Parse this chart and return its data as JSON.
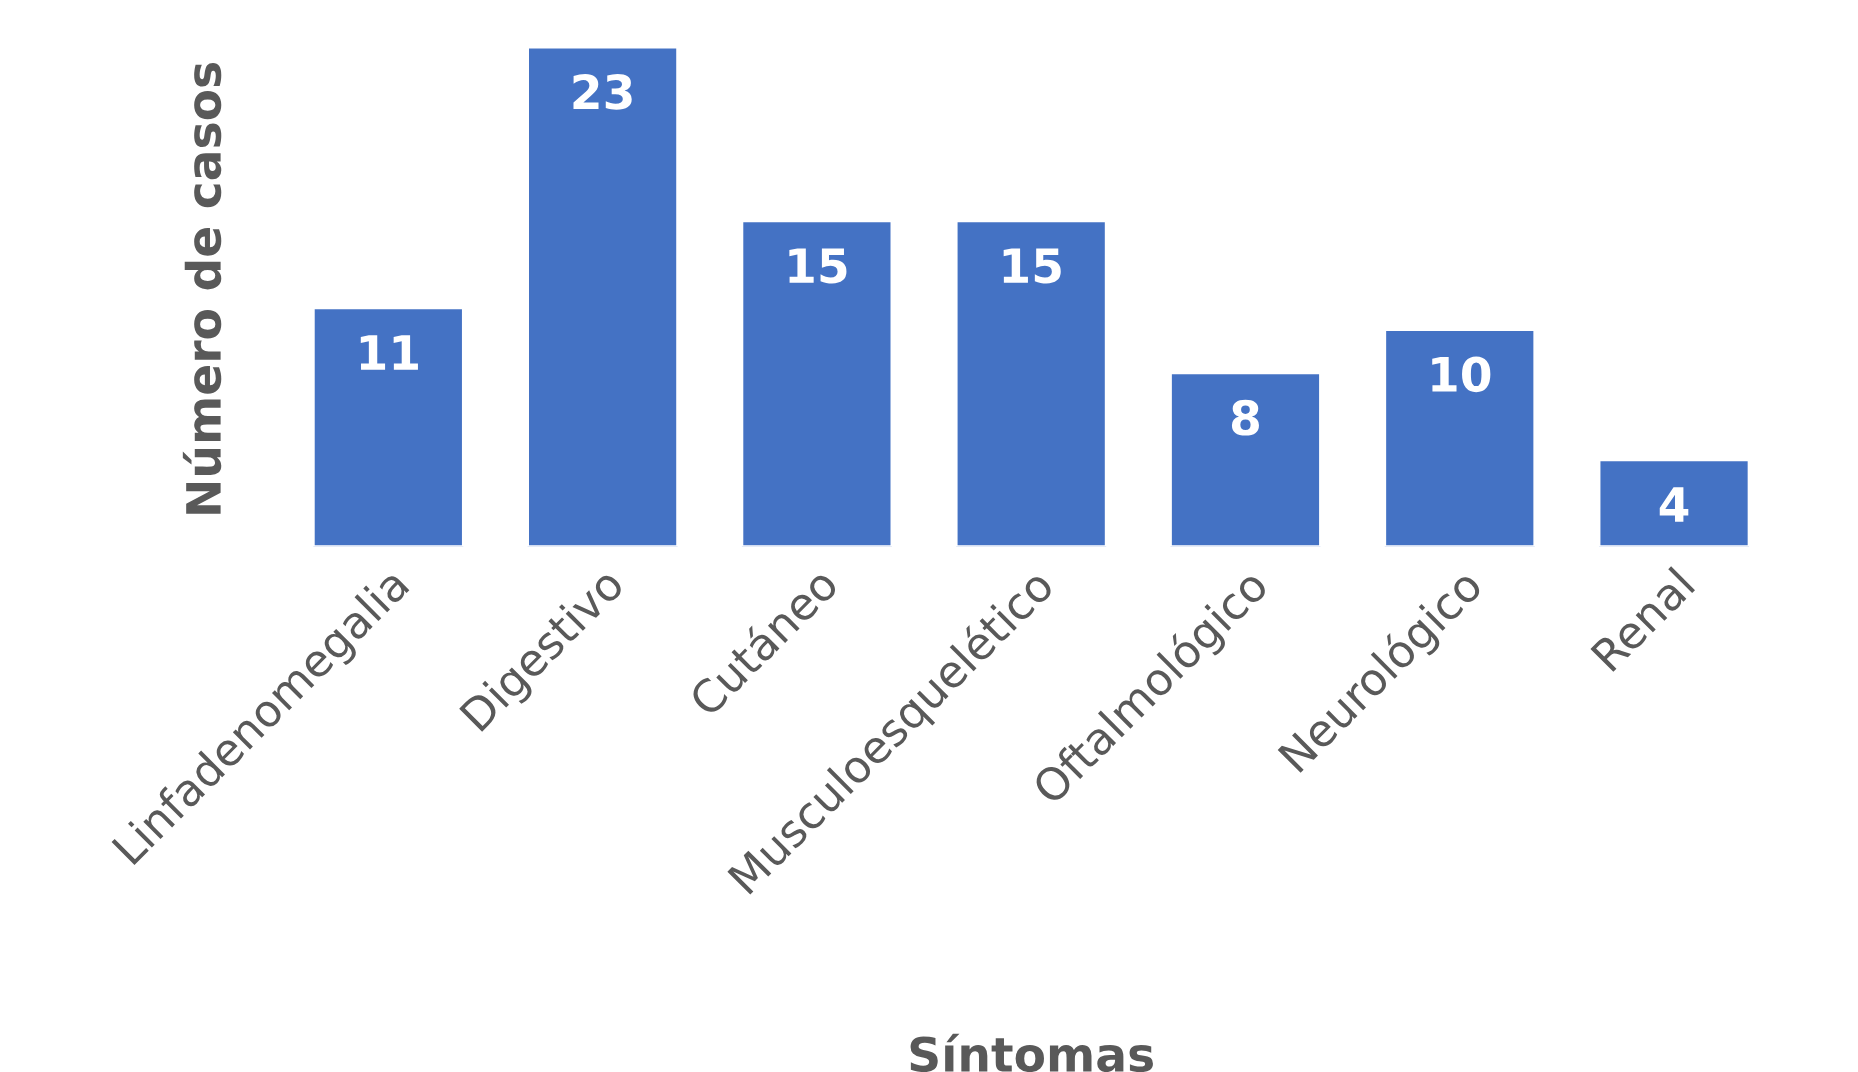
{
  "chart_data": {
    "type": "bar",
    "xlabel": "Síntomas",
    "ylabel": "Número de casos",
    "categories": [
      "Linfadenomegalia",
      "Digestivo",
      "Cutáneo",
      "Musculoesquelético",
      "Oftalmológico",
      "Neurológico",
      "Renal"
    ],
    "values": [
      11,
      23,
      15,
      15,
      8,
      10,
      4
    ],
    "color": "#4472c4",
    "data_labels": true,
    "grid": false,
    "legend": false
  }
}
